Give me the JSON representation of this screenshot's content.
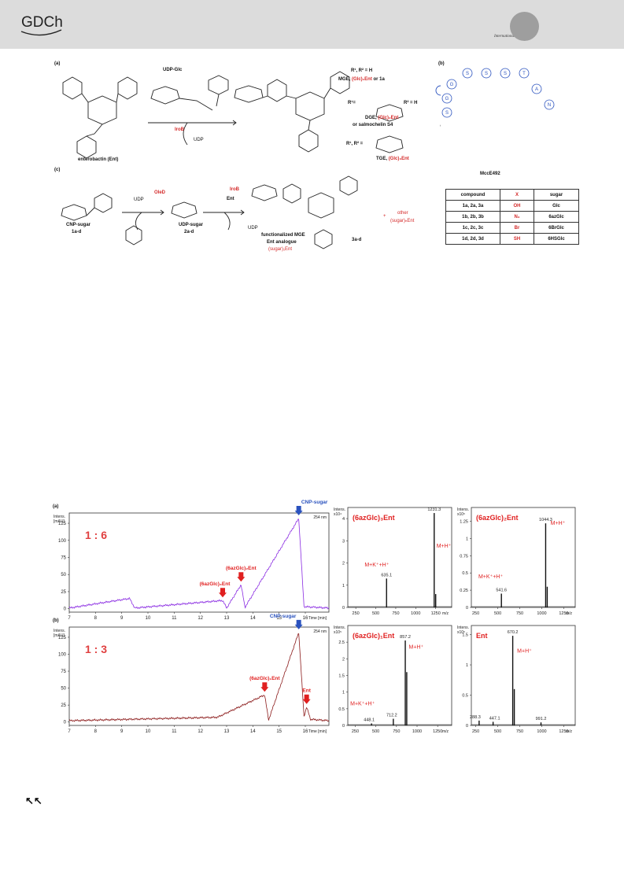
{
  "header": {
    "publisher_logo": "GDCh",
    "edition": "International Edition"
  },
  "scheme": {
    "panel_a": "(a)",
    "panel_b": "(b)",
    "panel_c": "(c)",
    "ent_label": "enterobactin (Ent)",
    "udp_glc": "UDP-Glc",
    "udp_a": "UDP",
    "iroB_a": "IroB",
    "r_mge": "R¹, R² = H",
    "mge_prefix": "MGE,",
    "mge_red": "(Glc)₁Ent",
    "mge_suffix": "or 1a",
    "r1_eq": "R¹=",
    "r2_eq": "R² = H",
    "dge_prefix": "DGE,",
    "dge_red": "(Glc)₂Ent",
    "dge_or": "or salmochelin S4",
    "r_tge": "R¹, R² =",
    "tge_prefix": "TGE,",
    "tge_red": "(Glc)₃Ent",
    "mcc_label": "MccE492",
    "peptide": [
      "G",
      "S",
      "S",
      "S",
      "T",
      "A",
      "S",
      "N",
      "G"
    ],
    "cnp_sugar": "CNP-sugar",
    "cnp_ids": "1a-d",
    "oleD": "OleD",
    "udp_c1": "UDP",
    "udp_sugar": "UDP-sugar",
    "udp_sugar_ids": "2a-d",
    "iroB_c": "IroB",
    "ent_c": "Ent",
    "udp_c2": "UDP",
    "func_mge": "functionalized MGE",
    "ent_analogue": "Ent analogue",
    "sugar_ent": "(sugar)₁Ent",
    "product_ids": "3a-d",
    "plus": "+",
    "other": "other",
    "other_sugar": "(sugar)ₙEnt",
    "table": {
      "headers": [
        "compound",
        "X",
        "sugar"
      ],
      "rows": [
        [
          "1a, 2a, 3a",
          "OH",
          "Glc"
        ],
        [
          "1b, 2b, 3b",
          "N₃",
          "6azGlc"
        ],
        [
          "1c, 2c, 3c",
          "Br",
          "6BrGlc"
        ],
        [
          "1d, 2d, 3d",
          "SH",
          "6HSGlc"
        ]
      ]
    }
  },
  "figure": {
    "panel_a": "(a)",
    "panel_b": "(b)",
    "ratio_a": "1 : 6",
    "ratio_b": "1 : 3",
    "hplc_ylabel1": "Intens.",
    "hplc_ylabel2": "[mAU]",
    "wavelength": "254 nm",
    "xaxis_title": "Time [min]",
    "ms_ylabel": "Intens.",
    "ms_xaxis": "m/z",
    "ann_a": {
      "azglc3": "(6azGlc)₃Ent",
      "azglc2": "(6azGlc)₂Ent",
      "cnp": "CNP-sugar"
    },
    "ann_b": {
      "azglc1": "(6azGlc)₁Ent",
      "ent": "Ent",
      "cnp": "CNP-sugar"
    },
    "ms_titles": [
      "(6azGlc)₃Ent",
      "(6azGlc)₂Ent",
      "(6azGlc)₁Ent",
      "Ent"
    ],
    "ms_scales": [
      "x10⁴",
      "x10⁵",
      "x10⁵",
      "x10⁵"
    ],
    "ion_mh": "M+H⁺",
    "ion_mk": "M+K⁺+H⁺",
    "peaks": {
      "ms1": [
        "1231.3",
        "635.1"
      ],
      "ms2": [
        "1044.3",
        "541.6"
      ],
      "ms3": [
        "857.2",
        "448.1",
        "712.2"
      ],
      "ms4": [
        "670.2",
        "288.3",
        "447.1",
        "991.2"
      ]
    }
  },
  "chart_data": [
    {
      "type": "line",
      "title": "1 : 6",
      "xlabel": "Time [min]",
      "ylabel": "Intens. [mAU]",
      "xlim": [
        7,
        16.9
      ],
      "ylim": [
        -5,
        140
      ],
      "x_ticks": [
        7,
        8,
        9,
        10,
        11,
        12,
        13,
        14,
        15,
        16
      ],
      "y_ticks": [
        0,
        25,
        50,
        75,
        100,
        125
      ],
      "series": [
        {
          "name": "254 nm",
          "color": "#8a2be2",
          "x": [
            7.0,
            9.3,
            9.5,
            12.85,
            13.0,
            13.55,
            13.7,
            15.75,
            15.95,
            16.9
          ],
          "y": [
            1,
            15,
            1,
            12,
            1,
            35,
            2,
            132,
            3,
            1
          ]
        }
      ]
    },
    {
      "type": "line",
      "title": "1 : 3",
      "xlabel": "Time [min]",
      "ylabel": "Intens. [mAU]",
      "xlim": [
        7,
        16.9
      ],
      "ylim": [
        -5,
        140
      ],
      "x_ticks": [
        7,
        8,
        9,
        10,
        11,
        12,
        13,
        14,
        15,
        16
      ],
      "y_ticks": [
        0,
        25,
        50,
        75,
        100,
        125
      ],
      "series": [
        {
          "name": "254 nm",
          "color": "#8b1a1a",
          "x": [
            7.0,
            12.65,
            14.45,
            14.6,
            15.75,
            15.95,
            16.05,
            16.2,
            16.9
          ],
          "y": [
            2,
            7,
            40,
            3,
            132,
            8,
            22,
            4,
            2
          ]
        }
      ]
    },
    {
      "type": "bar",
      "title": "(6azGlc)₃Ent",
      "xlabel": "m/z",
      "ylabel": "Intens.",
      "xlim": [
        150,
        1450
      ],
      "ylim": [
        0,
        4.5
      ],
      "x": [
        635.1,
        1231.3,
        1250
      ],
      "values": [
        1.3,
        4.25,
        0.6
      ]
    },
    {
      "type": "bar",
      "title": "(6azGlc)₂Ent",
      "xlabel": "m/z",
      "ylabel": "Intens.",
      "xlim": [
        200,
        1380
      ],
      "ylim": [
        0,
        1.45
      ],
      "x": [
        541.6,
        1044.3,
        1062
      ],
      "values": [
        0.2,
        1.22,
        0.3
      ]
    },
    {
      "type": "bar",
      "title": "(6azGlc)₁Ent",
      "xlabel": "m/z",
      "ylabel": "Intens.",
      "xlim": [
        160,
        1420
      ],
      "ylim": [
        0,
        3.0
      ],
      "x": [
        448.1,
        712.2,
        857.2,
        875
      ],
      "values": [
        0.06,
        0.2,
        2.55,
        1.6
      ]
    },
    {
      "type": "bar",
      "title": "Ent",
      "xlabel": "m/z",
      "ylabel": "Intens.",
      "xlim": [
        200,
        1380
      ],
      "ylim": [
        0,
        1.65
      ],
      "x": [
        288.3,
        447.1,
        670.2,
        688,
        991.2
      ],
      "values": [
        0.08,
        0.06,
        1.48,
        0.6,
        0.05
      ]
    }
  ]
}
